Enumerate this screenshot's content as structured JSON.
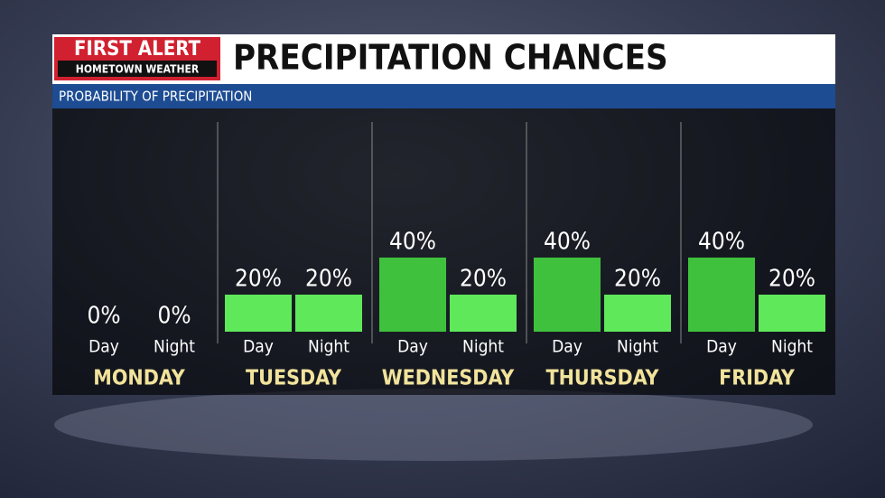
{
  "chart_data": {
    "type": "bar",
    "logo": {
      "line1": "FIRST ALERT",
      "line2": "HOMETOWN WEATHER"
    },
    "title": "PRECIPITATION CHANCES",
    "subtitle": "PROBABILITY OF PRECIPITATION",
    "categories": [
      "MONDAY",
      "TUESDAY",
      "WEDNESDAY",
      "THURSDAY",
      "FRIDAY"
    ],
    "series": [
      {
        "name": "Day",
        "values": [
          0,
          20,
          40,
          40,
          40
        ],
        "value_labels": [
          "0%",
          "20%",
          "40%",
          "40%",
          "40%"
        ],
        "colors": [
          "#5ee85a",
          "#5ee85a",
          "#3fc13d",
          "#3fc13d",
          "#3fc13d"
        ]
      },
      {
        "name": "Night",
        "values": [
          0,
          20,
          20,
          20,
          20
        ],
        "value_labels": [
          "0%",
          "20%",
          "20%",
          "20%",
          "20%"
        ],
        "colors": [
          "#5ee85a",
          "#5ee85a",
          "#5ee85a",
          "#5ee85a",
          "#5ee85a"
        ]
      }
    ]
  }
}
